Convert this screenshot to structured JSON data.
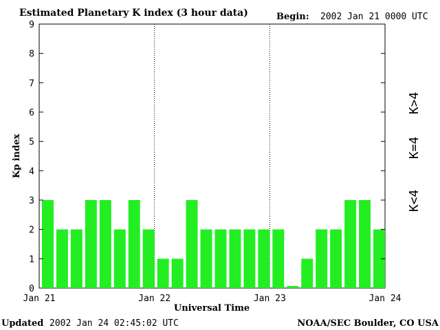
{
  "header": {
    "title": "Estimated Planetary K index (3 hour data)",
    "begin_label": "Begin:",
    "begin_value": "2002 Jan 21 0000 UTC"
  },
  "footer": {
    "updated_label": "Updated",
    "updated_value": "2002 Jan 24 02:45:02 UTC",
    "source": "NOAA/SEC Boulder, CO USA"
  },
  "legend": [
    {
      "label": "K>4",
      "color": "#ff2a00"
    },
    {
      "label": "K=4",
      "color": "#ffd700"
    },
    {
      "label": "K<4",
      "color": "#22ee22"
    }
  ],
  "chart_data": {
    "type": "bar",
    "title": "Estimated Planetary K index (3 hour data)",
    "xlabel": "Universal Time",
    "ylabel": "Kp index",
    "ylim": [
      0,
      9
    ],
    "yticks": [
      0,
      1,
      2,
      3,
      4,
      5,
      6,
      7,
      8,
      9
    ],
    "x_tick_labels": [
      "Jan 21",
      "Jan 22",
      "Jan 23",
      "Jan 24"
    ],
    "day_separators": [
      "Jan 22",
      "Jan 23"
    ],
    "interval_hours": 3,
    "bar_color": "#22ee22",
    "values": [
      3,
      2,
      2,
      3,
      3,
      2,
      3,
      2,
      1,
      1,
      3,
      2,
      2,
      2,
      2,
      2,
      2,
      0.07,
      1,
      2,
      2,
      3,
      3,
      2
    ]
  }
}
